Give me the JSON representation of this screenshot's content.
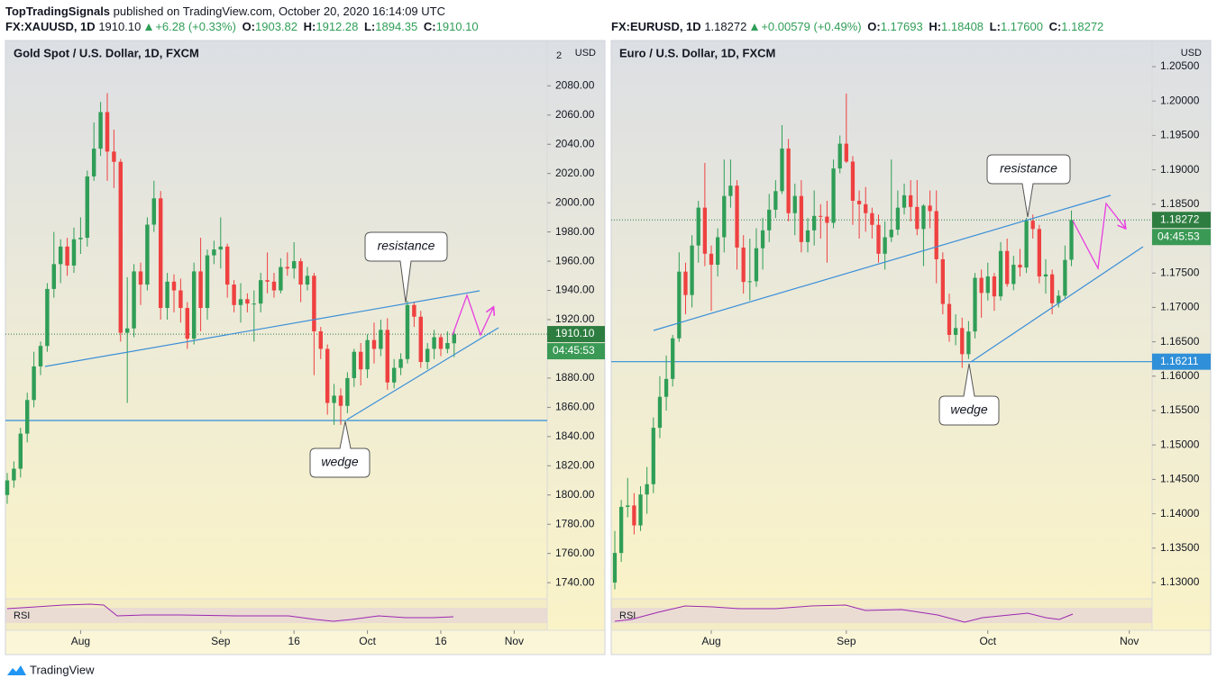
{
  "header": {
    "author": "TopTradingSignals",
    "published": "published on TradingView.com, October 20, 2020 16:14:09 UTC"
  },
  "footer": "TradingView",
  "chart_data": [
    {
      "type": "candlestick",
      "title": "Gold Spot / U.S. Dollar, 1D, FXCM",
      "quote": {
        "symbol": "FX:XAUUSD, 1D",
        "last": "1910.10",
        "change": "+6.28 (+0.33%)",
        "fields": [
          {
            "label": "O:",
            "value": "1903.82"
          },
          {
            "label": "H:",
            "value": "1912.28"
          },
          {
            "label": "L:",
            "value": "1894.35"
          },
          {
            "label": "C:",
            "value": "1910.10"
          }
        ]
      },
      "axis_unit": "USD",
      "axis_note": "2",
      "indicator": "RSI",
      "up_color": "#2f9e57",
      "down_color": "#ef4040",
      "level_color": "#2f8fd8",
      "ylim": [
        1729,
        2111
      ],
      "yticks": [
        {
          "value": 2080,
          "label": "2080.00"
        },
        {
          "value": 2060,
          "label": "2060.00"
        },
        {
          "value": 2040,
          "label": "2040.00"
        },
        {
          "value": 2020,
          "label": "2020.00"
        },
        {
          "value": 2000,
          "label": "2000.00"
        },
        {
          "value": 1980,
          "label": "1980.00"
        },
        {
          "value": 1960,
          "label": "1960.00"
        },
        {
          "value": 1940,
          "label": "1940.00"
        },
        {
          "value": 1920,
          "label": "1920.00"
        },
        {
          "value": 1900,
          "label": "1900.00"
        },
        {
          "value": 1880,
          "label": "1880.00"
        },
        {
          "value": 1860,
          "label": "1860.00"
        },
        {
          "value": 1840,
          "label": "1840.00"
        },
        {
          "value": 1820,
          "label": "1820.00"
        },
        {
          "value": 1800,
          "label": "1800.00"
        },
        {
          "value": 1780,
          "label": "1780.00"
        },
        {
          "value": 1760,
          "label": "1760.00"
        },
        {
          "value": 1740,
          "label": "1740.00"
        }
      ],
      "xlim": [
        -0.27,
        80.95
      ],
      "xticks": [
        {
          "value": 11,
          "label": "Aug"
        },
        {
          "value": 32,
          "label": "Sep"
        },
        {
          "value": 43,
          "label": "16"
        },
        {
          "value": 54,
          "label": "Oct"
        },
        {
          "value": 65,
          "label": "16"
        },
        {
          "value": 76,
          "label": "Nov"
        }
      ],
      "last": {
        "value": 1910.1,
        "label": "1910.10"
      },
      "countdown": "04:45:53",
      "levels": [
        1851
      ],
      "annotations": [
        "resistance",
        "wedge"
      ],
      "ohlc": [
        [
          1800,
          1815,
          1794,
          1810
        ],
        [
          1810,
          1823,
          1805,
          1818
        ],
        [
          1818,
          1846,
          1812,
          1842
        ],
        [
          1842,
          1870,
          1836,
          1865
        ],
        [
          1865,
          1898,
          1860,
          1888
        ],
        [
          1888,
          1905,
          1882,
          1902
        ],
        [
          1902,
          1945,
          1898,
          1941
        ],
        [
          1941,
          1980,
          1935,
          1958
        ],
        [
          1958,
          1975,
          1945,
          1970
        ],
        [
          1970,
          1976,
          1950,
          1957
        ],
        [
          1957,
          1983,
          1952,
          1975
        ],
        [
          1975,
          1990,
          1965,
          1976
        ],
        [
          1976,
          2022,
          1970,
          2018
        ],
        [
          2018,
          2055,
          2015,
          2037
        ],
        [
          2037,
          2069,
          2032,
          2062
        ],
        [
          2062,
          2075,
          2015,
          2035
        ],
        [
          2035,
          2050,
          2010,
          2028
        ],
        [
          2028,
          2030,
          1905,
          1911
        ],
        [
          1911,
          1949,
          1863,
          1914
        ],
        [
          1914,
          1958,
          1908,
          1953
        ],
        [
          1953,
          1959,
          1930,
          1944
        ],
        [
          1944,
          1990,
          1940,
          1985
        ],
        [
          1985,
          2015,
          1980,
          2003
        ],
        [
          2003,
          2008,
          1920,
          1928
        ],
        [
          1928,
          1952,
          1920,
          1946
        ],
        [
          1946,
          1951,
          1925,
          1940
        ],
        [
          1940,
          1948,
          1918,
          1928
        ],
        [
          1928,
          1932,
          1900,
          1907
        ],
        [
          1907,
          1959,
          1903,
          1953
        ],
        [
          1953,
          1976,
          1912,
          1928
        ],
        [
          1928,
          1968,
          1920,
          1964
        ],
        [
          1964,
          1974,
          1958,
          1968
        ],
        [
          1968,
          1990,
          1955,
          1970
        ],
        [
          1970,
          1972,
          1935,
          1944
        ],
        [
          1944,
          1947,
          1925,
          1930
        ],
        [
          1930,
          1945,
          1918,
          1934
        ],
        [
          1934,
          1938,
          1925,
          1931
        ],
        [
          1931,
          1940,
          1905,
          1931
        ],
        [
          1931,
          1952,
          1925,
          1947
        ],
        [
          1947,
          1966,
          1938,
          1946
        ],
        [
          1946,
          1952,
          1935,
          1940
        ],
        [
          1940,
          1962,
          1938,
          1956
        ],
        [
          1956,
          1966,
          1950,
          1955
        ],
        [
          1955,
          1973,
          1948,
          1960
        ],
        [
          1960,
          1962,
          1932,
          1944
        ],
        [
          1944,
          1956,
          1940,
          1950
        ],
        [
          1950,
          1952,
          1882,
          1912
        ],
        [
          1912,
          1915,
          1893,
          1900
        ],
        [
          1900,
          1903,
          1855,
          1863
        ],
        [
          1863,
          1876,
          1848,
          1868
        ],
        [
          1868,
          1873,
          1848,
          1861
        ],
        [
          1861,
          1884,
          1856,
          1880
        ],
        [
          1880,
          1900,
          1874,
          1898
        ],
        [
          1898,
          1904,
          1875,
          1886
        ],
        [
          1886,
          1910,
          1880,
          1906
        ],
        [
          1906,
          1918,
          1890,
          1900
        ],
        [
          1900,
          1920,
          1895,
          1913
        ],
        [
          1913,
          1921,
          1872,
          1877
        ],
        [
          1877,
          1893,
          1873,
          1887
        ],
        [
          1887,
          1897,
          1882,
          1893
        ],
        [
          1893,
          1933,
          1890,
          1930
        ],
        [
          1930,
          1932,
          1915,
          1922
        ],
        [
          1922,
          1926,
          1887,
          1891
        ],
        [
          1891,
          1904,
          1886,
          1900
        ],
        [
          1900,
          1913,
          1893,
          1908
        ],
        [
          1908,
          1910,
          1895,
          1900
        ],
        [
          1900,
          1912,
          1897,
          1904
        ],
        [
          1903.82,
          1912.28,
          1894.35,
          1910.1
        ]
      ]
    },
    {
      "type": "candlestick",
      "title": "Euro / U.S. Dollar, 1D, FXCM",
      "quote": {
        "symbol": "FX:EURUSD, 1D",
        "last": "1.18272",
        "change": "+0.00579 (+0.49%)",
        "fields": [
          {
            "label": "O:",
            "value": "1.17693"
          },
          {
            "label": "H:",
            "value": "1.18408"
          },
          {
            "label": "L:",
            "value": "1.17600"
          },
          {
            "label": "C:",
            "value": "1.18272"
          }
        ]
      },
      "axis_unit": "USD",
      "indicator": "RSI",
      "up_color": "#2f9e57",
      "down_color": "#ef4040",
      "level_color": "#2f8fd8",
      "ylim": [
        1.12764,
        1.2088
      ],
      "yticks": [
        {
          "value": 1.205,
          "label": "1.20500"
        },
        {
          "value": 1.2,
          "label": "1.20000"
        },
        {
          "value": 1.195,
          "label": "1.19500"
        },
        {
          "value": 1.19,
          "label": "1.19000"
        },
        {
          "value": 1.185,
          "label": "1.18500"
        },
        {
          "value": 1.18,
          "label": "1.18000"
        },
        {
          "value": 1.175,
          "label": "1.17500"
        },
        {
          "value": 1.17,
          "label": "1.17000"
        },
        {
          "value": 1.165,
          "label": "1.16500"
        },
        {
          "value": 1.16,
          "label": "1.16000"
        },
        {
          "value": 1.155,
          "label": "1.15500"
        },
        {
          "value": 1.15,
          "label": "1.15000"
        },
        {
          "value": 1.145,
          "label": "1.14500"
        },
        {
          "value": 1.14,
          "label": "1.14000"
        },
        {
          "value": 1.135,
          "label": "1.13500"
        },
        {
          "value": 1.13,
          "label": "1.13000"
        }
      ],
      "xlim": [
        -0.56,
        83.54
      ],
      "xticks": [
        {
          "value": 15,
          "label": "Aug"
        },
        {
          "value": 36,
          "label": "Sep"
        },
        {
          "value": 58,
          "label": "Oct"
        },
        {
          "value": 80,
          "label": "Nov"
        }
      ],
      "last": {
        "value": 1.18272,
        "label": "1.18272"
      },
      "countdown": "04:45:53",
      "levels": [
        {
          "value": 1.16211,
          "label": "1.16211"
        }
      ],
      "annotations": [
        "resistance",
        "wedge"
      ],
      "ohlc": [
        [
          1.13,
          1.1375,
          1.129,
          1.1343
        ],
        [
          1.1343,
          1.142,
          1.133,
          1.141
        ],
        [
          1.141,
          1.1452,
          1.1395,
          1.1412
        ],
        [
          1.1412,
          1.143,
          1.137,
          1.1383
        ],
        [
          1.1383,
          1.144,
          1.1375,
          1.1428
        ],
        [
          1.1428,
          1.1468,
          1.14,
          1.1443
        ],
        [
          1.1443,
          1.154,
          1.143,
          1.1525
        ],
        [
          1.1525,
          1.16,
          1.151,
          1.157
        ],
        [
          1.157,
          1.163,
          1.155,
          1.1596
        ],
        [
          1.1596,
          1.166,
          1.1585,
          1.1655
        ],
        [
          1.1655,
          1.178,
          1.165,
          1.1752
        ],
        [
          1.1752,
          1.1765,
          1.169,
          1.1718
        ],
        [
          1.1718,
          1.1805,
          1.17,
          1.179
        ],
        [
          1.179,
          1.1855,
          1.1765,
          1.1845
        ],
        [
          1.1845,
          1.191,
          1.176,
          1.1778
        ],
        [
          1.1778,
          1.179,
          1.1695,
          1.1762
        ],
        [
          1.1762,
          1.1815,
          1.1745,
          1.1802
        ],
        [
          1.1802,
          1.1915,
          1.178,
          1.1862
        ],
        [
          1.1862,
          1.1915,
          1.1845,
          1.1877
        ],
        [
          1.1877,
          1.1885,
          1.1755,
          1.1787
        ],
        [
          1.1787,
          1.1805,
          1.172,
          1.1737
        ],
        [
          1.1737,
          1.18,
          1.171,
          1.1738
        ],
        [
          1.1738,
          1.1815,
          1.173,
          1.1786
        ],
        [
          1.1786,
          1.183,
          1.1755,
          1.1812
        ],
        [
          1.1812,
          1.1865,
          1.1795,
          1.1842
        ],
        [
          1.1842,
          1.1885,
          1.183,
          1.1869
        ],
        [
          1.1869,
          1.1965,
          1.1865,
          1.1931
        ],
        [
          1.1931,
          1.1945,
          1.1825,
          1.1837
        ],
        [
          1.1837,
          1.188,
          1.1805,
          1.1862
        ],
        [
          1.1862,
          1.1885,
          1.178,
          1.1795
        ],
        [
          1.1795,
          1.183,
          1.178,
          1.1812
        ],
        [
          1.1812,
          1.187,
          1.179,
          1.1833
        ],
        [
          1.1833,
          1.185,
          1.18,
          1.1832
        ],
        [
          1.1832,
          1.1855,
          1.1765,
          1.1823
        ],
        [
          1.1823,
          1.1915,
          1.1815,
          1.1902
        ],
        [
          1.1902,
          1.195,
          1.1895,
          1.1938
        ],
        [
          1.1938,
          1.2011,
          1.191,
          1.1912
        ],
        [
          1.1912,
          1.192,
          1.182,
          1.1855
        ],
        [
          1.1855,
          1.187,
          1.18,
          1.185
        ],
        [
          1.185,
          1.1875,
          1.181,
          1.1837
        ],
        [
          1.1837,
          1.1845,
          1.18,
          1.182
        ],
        [
          1.182,
          1.1835,
          1.1765,
          1.1778
        ],
        [
          1.1778,
          1.1825,
          1.1755,
          1.1802
        ],
        [
          1.1802,
          1.1915,
          1.1795,
          1.1813
        ],
        [
          1.1813,
          1.187,
          1.1805,
          1.1845
        ],
        [
          1.1845,
          1.188,
          1.1835,
          1.1863
        ],
        [
          1.1863,
          1.1885,
          1.1825,
          1.1846
        ],
        [
          1.1846,
          1.1885,
          1.1805,
          1.1814
        ],
        [
          1.1814,
          1.185,
          1.176,
          1.1848
        ],
        [
          1.1848,
          1.187,
          1.1815,
          1.184
        ],
        [
          1.184,
          1.187,
          1.1735,
          1.177
        ],
        [
          1.177,
          1.178,
          1.169,
          1.1705
        ],
        [
          1.1705,
          1.172,
          1.165,
          1.166
        ],
        [
          1.166,
          1.169,
          1.1645,
          1.167
        ],
        [
          1.167,
          1.1685,
          1.1612,
          1.1632
        ],
        [
          1.1632,
          1.168,
          1.1625,
          1.1665
        ],
        [
          1.1665,
          1.175,
          1.1655,
          1.1743
        ],
        [
          1.1743,
          1.1755,
          1.1685,
          1.1721
        ],
        [
          1.1721,
          1.1765,
          1.171,
          1.1745
        ],
        [
          1.1745,
          1.175,
          1.1695,
          1.1716
        ],
        [
          1.1716,
          1.1795,
          1.171,
          1.1782
        ],
        [
          1.1782,
          1.18,
          1.173,
          1.1734
        ],
        [
          1.1734,
          1.1775,
          1.1725,
          1.1762
        ],
        [
          1.1762,
          1.1785,
          1.1745,
          1.1758
        ],
        [
          1.1758,
          1.183,
          1.175,
          1.1826
        ],
        [
          1.1826,
          1.1835,
          1.18,
          1.1814
        ],
        [
          1.1814,
          1.182,
          1.1735,
          1.1745
        ],
        [
          1.1745,
          1.177,
          1.172,
          1.1748
        ],
        [
          1.1748,
          1.1755,
          1.169,
          1.1706
        ],
        [
          1.1706,
          1.1725,
          1.17,
          1.1717
        ],
        [
          1.1717,
          1.179,
          1.1712,
          1.1769
        ],
        [
          1.17693,
          1.18408,
          1.176,
          1.18272
        ]
      ]
    }
  ]
}
